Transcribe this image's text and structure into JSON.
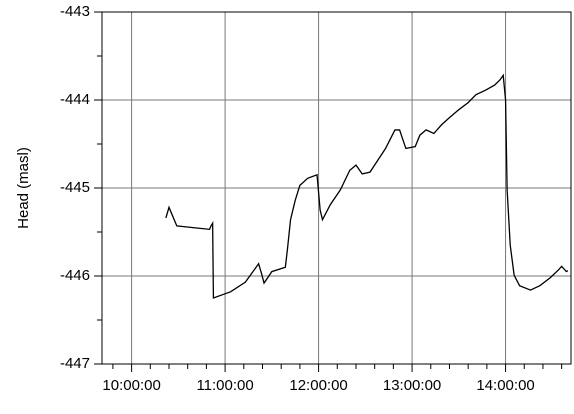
{
  "chart_data": {
    "type": "line",
    "y_label": "Head (masl)",
    "x": [
      "10:22:00",
      "10:24:00",
      "10:29:00",
      "10:50:00",
      "10:51:00",
      "10:52:00",
      "10:52:30",
      "11:03:30",
      "11:13:00",
      "11:19:30",
      "11:21:30",
      "11:23:20",
      "11:25:00",
      "11:30:00",
      "11:38:40",
      "11:40:00",
      "11:42:00",
      "11:45:00",
      "11:48:00",
      "11:53:00",
      "11:59:00",
      "12:01:00",
      "12:02:30",
      "12:07:30",
      "12:14:00",
      "12:20:00",
      "12:24:00",
      "12:28:00",
      "12:33:00",
      "12:43:00",
      "12:49:00",
      "12:52:00",
      "12:56:00",
      "13:02:00",
      "13:05:00",
      "13:09:00",
      "13:14:00",
      "13:19:00",
      "13:24:00",
      "13:30:00",
      "13:36:00",
      "13:41:00",
      "13:47:00",
      "13:53:00",
      "13:56:30",
      "13:58:30",
      "14:00:00",
      "14:01:00",
      "14:03:00",
      "14:05:30",
      "14:09:00",
      "14:16:00",
      "14:22:00",
      "14:28:40",
      "14:34:00",
      "14:36:00",
      "14:39:00",
      "14:40:00"
    ],
    "series": [
      {
        "color": "#000000",
        "values": [
          -445.34,
          -445.22,
          -445.43,
          -445.47,
          -445.43,
          -445.4,
          -446.25,
          -446.18,
          -446.07,
          -445.91,
          -445.86,
          -445.97,
          -446.08,
          -445.95,
          -445.9,
          -445.7,
          -445.36,
          -445.14,
          -444.97,
          -444.89,
          -444.85,
          -445.25,
          -445.36,
          -445.19,
          -445.02,
          -444.8,
          -444.74,
          -444.84,
          -444.82,
          -444.55,
          -444.34,
          -444.34,
          -444.55,
          -444.53,
          -444.4,
          -444.34,
          -444.38,
          -444.28,
          -444.2,
          -444.11,
          -444.03,
          -443.94,
          -443.89,
          -443.83,
          -443.77,
          -443.72,
          -444.0,
          -445.02,
          -445.65,
          -445.99,
          -446.11,
          -446.16,
          -446.11,
          -446.02,
          -445.93,
          -445.89,
          -445.95,
          -445.94
        ]
      }
    ],
    "xlim": [
      "09:41:00",
      "14:42:00"
    ],
    "xticks": [
      "10:00:00",
      "11:00:00",
      "12:00:00",
      "13:00:00",
      "14:00:00"
    ],
    "xminor_ticks": [
      "09:48:00",
      "10:12:00",
      "10:24:00",
      "10:36:00",
      "10:48:00",
      "11:12:00",
      "11:24:00",
      "11:36:00",
      "11:48:00",
      "12:12:00",
      "12:24:00",
      "12:36:00",
      "12:48:00",
      "13:12:00",
      "13:24:00",
      "13:36:00",
      "13:48:00",
      "14:12:00",
      "14:24:00",
      "14:36:00"
    ],
    "ylim": [
      -447,
      -443
    ],
    "yticks": [
      -447,
      -446,
      -445,
      -444,
      -443
    ],
    "yminor_ticks": [
      -446.5,
      -445.5,
      -444.5,
      -443.5
    ],
    "grid": true
  }
}
